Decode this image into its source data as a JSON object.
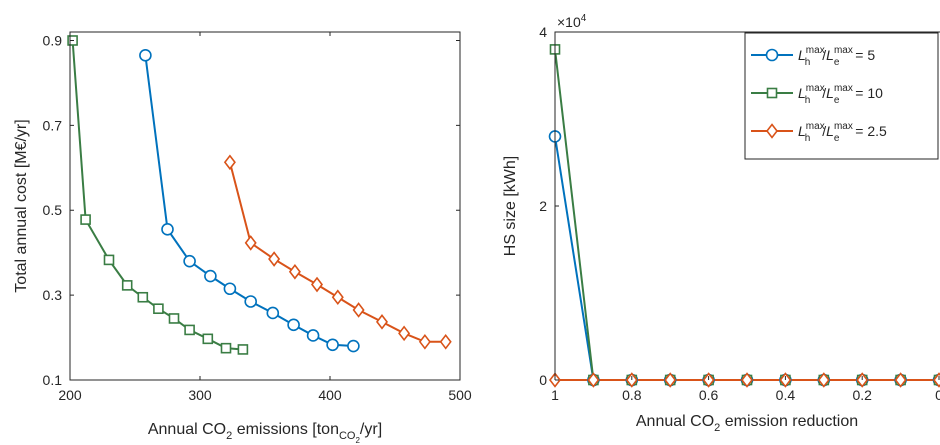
{
  "chart_data": [
    {
      "type": "line",
      "xlabel": "Annual CO2 emissions [tonCO2/yr]",
      "xlabel_parts": {
        "a": "Annual CO",
        "b": "2",
        "c": " emissions [ton",
        "d": "CO",
        "e": "2",
        "f": "/yr]"
      },
      "ylabel": "Total annual cost [M€/yr]",
      "xlim": [
        200,
        500
      ],
      "ylim": [
        0.1,
        0.92
      ],
      "xticks": [
        200,
        300,
        400,
        500
      ],
      "xtick_labels": [
        "200",
        "300",
        "400",
        "500"
      ],
      "yticks": [
        0.1,
        0.3,
        0.5,
        0.7,
        0.9
      ],
      "ytick_labels": [
        "0.1",
        "0.3",
        "0.5",
        "0.7",
        "0.9"
      ],
      "grid": false,
      "series": [
        {
          "key": "ratio-5",
          "color": "#0072BD",
          "marker": "circle",
          "x": [
            258,
            275,
            292,
            308,
            323,
            339,
            356,
            372,
            387,
            402,
            418
          ],
          "y": [
            0.865,
            0.455,
            0.38,
            0.345,
            0.315,
            0.285,
            0.258,
            0.23,
            0.205,
            0.183,
            0.18
          ]
        },
        {
          "key": "ratio-10",
          "color": "#3A7D44",
          "marker": "square",
          "x": [
            202,
            212,
            230,
            244,
            256,
            268,
            280,
            292,
            306,
            320,
            333
          ],
          "y": [
            0.9,
            0.478,
            0.383,
            0.323,
            0.295,
            0.268,
            0.245,
            0.218,
            0.197,
            0.175,
            0.172
          ]
        },
        {
          "key": "ratio-2.5",
          "color": "#D95319",
          "marker": "diamond",
          "x": [
            323,
            339,
            357,
            373,
            390,
            406,
            422,
            440,
            457,
            473,
            489
          ],
          "y": [
            0.613,
            0.423,
            0.385,
            0.355,
            0.325,
            0.295,
            0.265,
            0.237,
            0.21,
            0.19,
            0.19
          ]
        }
      ]
    },
    {
      "type": "line",
      "xlabel": "Annual CO2 emission reduction",
      "xlabel_parts": {
        "a": "Annual CO",
        "b": "2",
        "c": " emission reduction"
      },
      "ylabel": "HS size [kWh]",
      "exponent_label": {
        "base": "×10",
        "power": "4"
      },
      "xlim": [
        1,
        0
      ],
      "ylim": [
        0,
        4
      ],
      "xticks": [
        1,
        0.8,
        0.6,
        0.4,
        0.2,
        0
      ],
      "xtick_labels": [
        "1",
        "0.8",
        "0.6",
        "0.4",
        "0.2",
        "0"
      ],
      "yticks": [
        0,
        2,
        4
      ],
      "ytick_labels": [
        "0",
        "2",
        "4"
      ],
      "grid": false,
      "legend_position": "top-right",
      "series": [
        {
          "key": "ratio-5",
          "color": "#0072BD",
          "marker": "circle",
          "legend_value": "= 5",
          "x": [
            1,
            0.9,
            0.8,
            0.7,
            0.6,
            0.5,
            0.4,
            0.3,
            0.2,
            0.1,
            0
          ],
          "y": [
            2.8,
            0,
            0,
            0,
            0,
            0,
            0,
            0,
            0,
            0,
            0
          ]
        },
        {
          "key": "ratio-10",
          "color": "#3A7D44",
          "marker": "square",
          "legend_value": "= 10",
          "x": [
            1,
            0.9,
            0.8,
            0.7,
            0.6,
            0.5,
            0.4,
            0.3,
            0.2,
            0.1,
            0
          ],
          "y": [
            3.8,
            0,
            0,
            0,
            0,
            0,
            0,
            0,
            0,
            0,
            0
          ]
        },
        {
          "key": "ratio-2.5",
          "color": "#D95319",
          "marker": "diamond",
          "legend_value": "= 2.5",
          "x": [
            1,
            0.9,
            0.8,
            0.7,
            0.6,
            0.5,
            0.4,
            0.3,
            0.2,
            0.1,
            0
          ],
          "y": [
            0,
            0,
            0,
            0,
            0,
            0,
            0,
            0,
            0,
            0,
            0
          ]
        }
      ],
      "legend_math": {
        "L": "L",
        "h": "h",
        "e": "e",
        "max": "max",
        "slash": "/"
      }
    }
  ]
}
